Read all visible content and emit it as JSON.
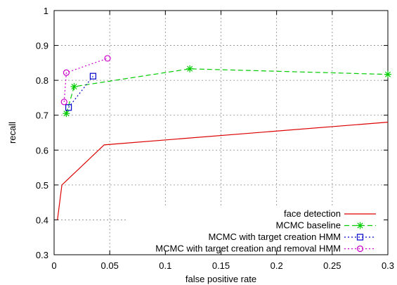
{
  "chart_data": {
    "type": "line",
    "title": "",
    "xlabel": "false positive rate",
    "ylabel": "recall",
    "xlim": [
      0,
      0.3
    ],
    "ylim": [
      0.3,
      1
    ],
    "x_ticks": [
      0,
      0.05,
      0.1,
      0.15,
      0.2,
      0.25,
      0.3
    ],
    "x_tick_labels": [
      "0",
      "0.05",
      "0.1",
      "0.15",
      "0.2",
      "0.25",
      "0.3"
    ],
    "y_ticks": [
      0.3,
      0.4,
      0.5,
      0.6,
      0.7,
      0.8,
      0.9,
      1
    ],
    "y_tick_labels": [
      "0.3",
      "0.4",
      "0.5",
      "0.6",
      "0.7",
      "0.8",
      "0.9",
      "1"
    ],
    "grid": true,
    "legend_position": "bottom-right",
    "series": [
      {
        "name": "face detection",
        "color": "#dd0000",
        "dash": "solid",
        "marker": "none",
        "points": [
          [
            0.003,
            0.4
          ],
          [
            0.007,
            0.5
          ],
          [
            0.045,
            0.615
          ],
          [
            0.3,
            0.68
          ]
        ]
      },
      {
        "name": "MCMC baseline",
        "color": "#00cc00",
        "dash": "dashed",
        "marker": "star",
        "points": [
          [
            0.011,
            0.705
          ],
          [
            0.018,
            0.782
          ],
          [
            0.122,
            0.833
          ],
          [
            0.3,
            0.817
          ]
        ]
      },
      {
        "name": "MCMC with target creation HMM",
        "color": "#0000cc",
        "dash": "dotted",
        "marker": "square",
        "points": [
          [
            0.013,
            0.722
          ],
          [
            0.035,
            0.812
          ]
        ]
      },
      {
        "name": "MCMC with target creation and removal HMM",
        "color": "#cc00cc",
        "dash": "dotted",
        "marker": "circle",
        "points": [
          [
            0.009,
            0.738
          ],
          [
            0.011,
            0.822
          ],
          [
            0.048,
            0.863
          ]
        ]
      }
    ]
  }
}
